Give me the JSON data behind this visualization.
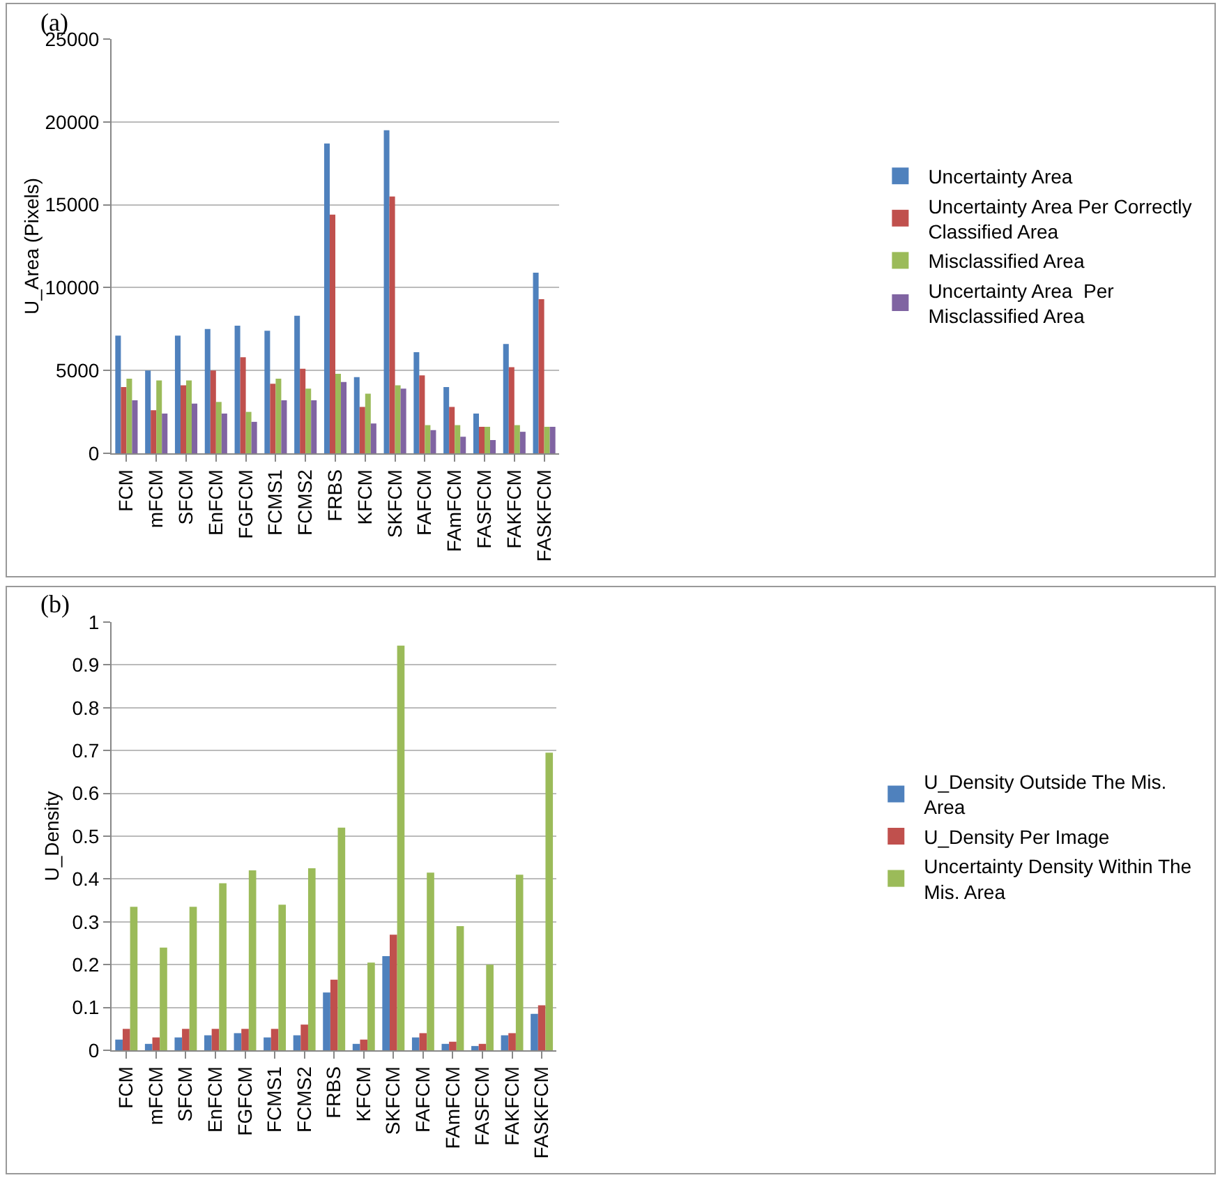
{
  "chart_data": [
    {
      "type": "bar",
      "annotations": [
        "(a)"
      ],
      "ylabel": "U_Area (Pixels)",
      "categories": [
        "FCM",
        "mFCM",
        "SFCM",
        "EnFCM",
        "FGFCM",
        "FCMS1",
        "FCMS2",
        "FRBS",
        "KFCM",
        "SKFCM",
        "FAFCM",
        "FAmFCM",
        "FASFCM",
        "FAKFCM",
        "FASKFCM"
      ],
      "series": [
        {
          "name": "Uncertainty Area",
          "color": "#4f81bd",
          "values": [
            7100,
            5000,
            7100,
            7500,
            7700,
            7400,
            8300,
            18700,
            4600,
            19500,
            6100,
            4000,
            2400,
            6600,
            10900
          ]
        },
        {
          "name": "Uncertainty Area Per Correctly Classified Area",
          "color": "#c0504d",
          "values": [
            4000,
            2600,
            4100,
            5000,
            5800,
            4200,
            5100,
            14400,
            2800,
            15500,
            4700,
            2800,
            1600,
            5200,
            9300
          ]
        },
        {
          "name": "Misclassified Area",
          "color": "#9bbb59",
          "values": [
            4500,
            4400,
            4400,
            3100,
            2500,
            4500,
            3900,
            4800,
            3600,
            4100,
            1700,
            1700,
            1600,
            1700,
            1600
          ]
        },
        {
          "name": "Uncertainty Area  Per Misclassified Area",
          "color": "#8064a2",
          "values": [
            3200,
            2400,
            3000,
            2400,
            1900,
            3200,
            3200,
            4300,
            1800,
            3900,
            1400,
            1000,
            800,
            1300,
            1600
          ]
        }
      ],
      "ylim": [
        0,
        25000
      ],
      "yticks": [
        0,
        5000,
        10000,
        15000,
        20000,
        25000
      ],
      "grid": "y",
      "legend": "right"
    },
    {
      "type": "bar",
      "annotations": [
        "(b)"
      ],
      "ylabel": "U_Density",
      "categories": [
        "FCM",
        "mFCM",
        "SFCM",
        "EnFCM",
        "FGFCM",
        "FCMS1",
        "FCMS2",
        "FRBS",
        "KFCM",
        "SKFCM",
        "FAFCM",
        "FAmFCM",
        "FASFCM",
        "FAKFCM",
        "FASKFCM"
      ],
      "series": [
        {
          "name": "U_Density Outside The Mis. Area",
          "color": "#4f81bd",
          "values": [
            0.025,
            0.015,
            0.03,
            0.035,
            0.04,
            0.03,
            0.035,
            0.135,
            0.015,
            0.22,
            0.03,
            0.015,
            0.01,
            0.035,
            0.085
          ]
        },
        {
          "name": "U_Density Per Image",
          "color": "#c0504d",
          "values": [
            0.05,
            0.03,
            0.05,
            0.05,
            0.05,
            0.05,
            0.06,
            0.165,
            0.025,
            0.27,
            0.04,
            0.02,
            0.015,
            0.04,
            0.105
          ]
        },
        {
          "name": "Uncertainty Density Within The Mis. Area",
          "color": "#9bbb59",
          "values": [
            0.335,
            0.24,
            0.335,
            0.39,
            0.42,
            0.34,
            0.425,
            0.52,
            0.205,
            0.945,
            0.415,
            0.29,
            0.2,
            0.41,
            0.695
          ]
        }
      ],
      "ylim": [
        0,
        1
      ],
      "yticks": [
        0,
        0.1,
        0.2,
        0.3,
        0.4,
        0.5,
        0.6,
        0.7,
        0.8,
        0.9,
        1
      ],
      "grid": "y",
      "legend": "right"
    }
  ]
}
